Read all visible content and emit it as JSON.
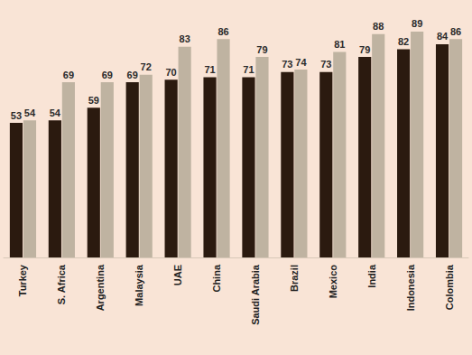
{
  "chart_data": {
    "type": "bar",
    "categories": [
      "Turkey",
      "S. Africa",
      "Argentina",
      "Malaysia",
      "UAE",
      "China",
      "Saudi Arabia",
      "Brazil",
      "Mexico",
      "India",
      "Indonesia",
      "Colombia"
    ],
    "series": [
      {
        "color": "#2b1a0f",
        "values": [
          53,
          54,
          59,
          69,
          70,
          71,
          71,
          73,
          73,
          79,
          82,
          84
        ]
      },
      {
        "color": "#bfb3a1",
        "values": [
          54,
          69,
          69,
          72,
          83,
          86,
          79,
          74,
          81,
          88,
          89,
          86
        ]
      }
    ],
    "ylim": [
      0,
      100
    ],
    "yticks": [
      0,
      100
    ],
    "grid": false,
    "data_labels": true,
    "tick_labels": "x"
  }
}
